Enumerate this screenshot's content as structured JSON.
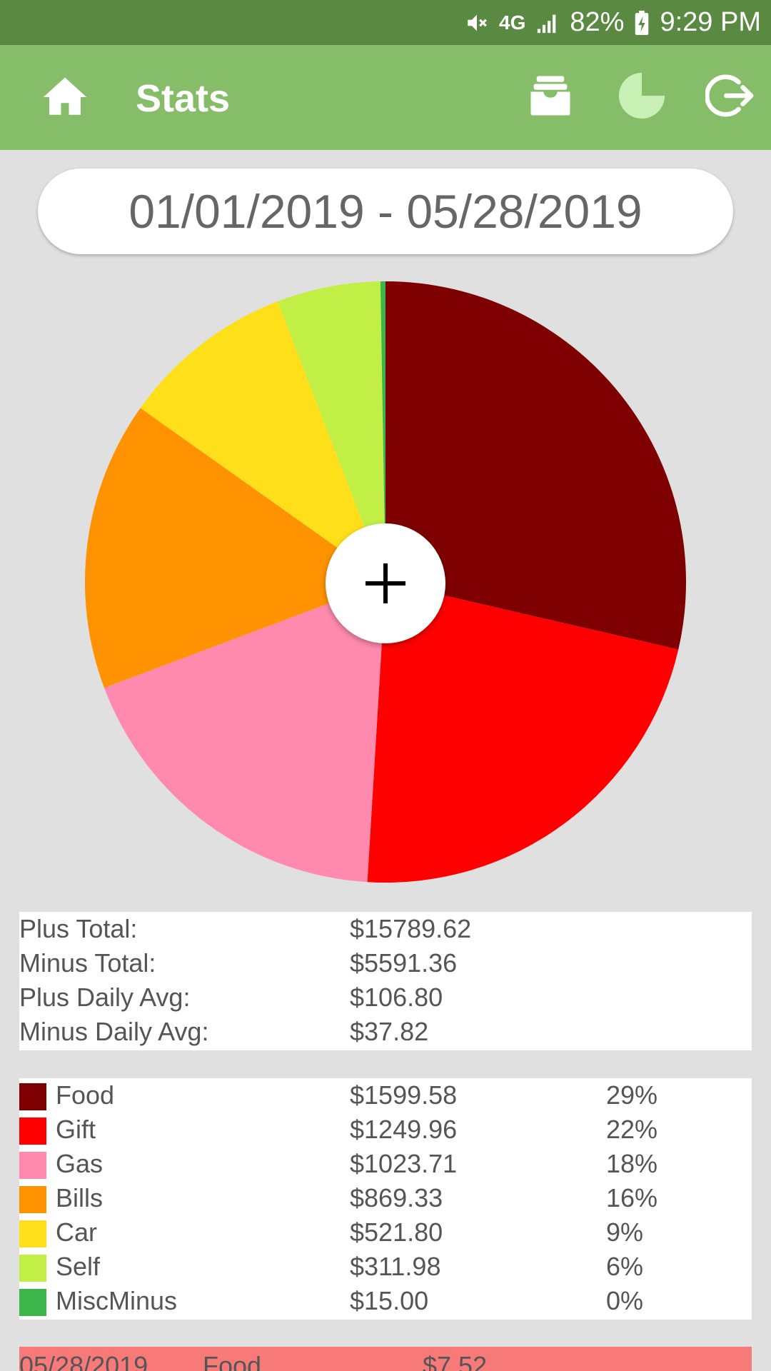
{
  "status_bar": {
    "network": "4G",
    "battery": "82%",
    "time": "9:29 PM"
  },
  "app_bar": {
    "title": "Stats",
    "icons": [
      "home-icon",
      "archive-icon",
      "pie-chart-icon",
      "logout-icon"
    ]
  },
  "date_range": "01/01/2019 - 05/28/2019",
  "fab_label": "+",
  "totals": [
    {
      "label": "Plus Total:",
      "value": "$15789.62"
    },
    {
      "label": "Minus Total:",
      "value": "$5591.36"
    },
    {
      "label": "Plus Daily Avg:",
      "value": "$106.80"
    },
    {
      "label": "Minus Daily Avg:",
      "value": "$37.82"
    }
  ],
  "categories": [
    {
      "name": "Food",
      "amount": "$1599.58",
      "percent": "29%",
      "color": "#7f0000"
    },
    {
      "name": "Gift",
      "amount": "$1249.96",
      "percent": "22%",
      "color": "#ff0000"
    },
    {
      "name": "Gas",
      "amount": "$1023.71",
      "percent": "18%",
      "color": "#ff8aae"
    },
    {
      "name": "Bills",
      "amount": "$869.33",
      "percent": "16%",
      "color": "#ff9200"
    },
    {
      "name": "Car",
      "amount": "$521.80",
      "percent": "9%",
      "color": "#ffde1a"
    },
    {
      "name": "Self",
      "amount": "$311.98",
      "percent": "6%",
      "color": "#c2ef45"
    },
    {
      "name": "MiscMinus",
      "amount": "$15.00",
      "percent": "0%",
      "color": "#3cb54a"
    }
  ],
  "chart_data": {
    "type": "pie",
    "categories": [
      "Food",
      "Gift",
      "Gas",
      "Bills",
      "Car",
      "Self",
      "MiscMinus"
    ],
    "values": [
      1599.58,
      1249.96,
      1023.71,
      869.33,
      521.8,
      311.98,
      15.0
    ],
    "colors": [
      "#7f0000",
      "#ff0000",
      "#ff8aae",
      "#ff9200",
      "#ffde1a",
      "#c2ef45",
      "#3cb54a"
    ]
  },
  "transaction": {
    "date": "05/28/2019",
    "category": "Food",
    "amount": "$7.52",
    "color": "#f77a78"
  }
}
